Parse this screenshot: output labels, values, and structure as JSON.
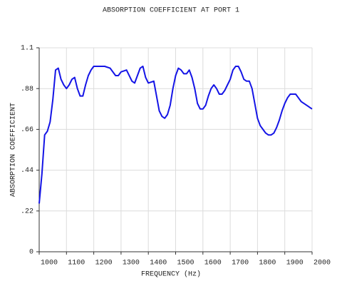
{
  "chart_data": {
    "type": "line",
    "title": "ABSORPTION COEFFICIENT AT PORT 1",
    "x_label": "FREQUENCY (Hz)",
    "y_label": "ABSORPTION COEFFICIENT",
    "grid": true,
    "xlim": [
      1000,
      2000
    ],
    "xticks": [
      1000,
      1100,
      1200,
      1300,
      1400,
      1500,
      1600,
      1700,
      1800,
      1900,
      2000
    ],
    "ylim": [
      0,
      1.1
    ],
    "yticks": [
      0,
      {
        "value": 0.22,
        "label": ".22"
      },
      {
        "value": 0.44,
        "label": ".44"
      },
      {
        "value": 0.66,
        "label": ".66"
      },
      {
        "value": 0.88,
        "label": ".88"
      },
      1.1
    ],
    "x": [
      1000,
      1010,
      1020,
      1030,
      1040,
      1050,
      1060,
      1070,
      1080,
      1090,
      1100,
      1110,
      1120,
      1130,
      1140,
      1150,
      1160,
      1170,
      1180,
      1190,
      1200,
      1220,
      1240,
      1260,
      1280,
      1290,
      1300,
      1320,
      1340,
      1350,
      1360,
      1370,
      1380,
      1390,
      1400,
      1420,
      1430,
      1440,
      1450,
      1460,
      1470,
      1480,
      1490,
      1500,
      1510,
      1520,
      1530,
      1540,
      1550,
      1560,
      1570,
      1580,
      1590,
      1600,
      1610,
      1620,
      1630,
      1640,
      1650,
      1660,
      1670,
      1680,
      1690,
      1700,
      1710,
      1720,
      1730,
      1740,
      1750,
      1760,
      1770,
      1780,
      1790,
      1800,
      1810,
      1820,
      1830,
      1840,
      1850,
      1860,
      1870,
      1880,
      1890,
      1900,
      1910,
      1920,
      1930,
      1940,
      1950,
      1960,
      1980,
      2000
    ],
    "series": [
      {
        "color": "#1414e6",
        "values": [
          0.26,
          0.42,
          0.63,
          0.65,
          0.7,
          0.82,
          0.98,
          0.99,
          0.93,
          0.9,
          0.88,
          0.9,
          0.93,
          0.94,
          0.88,
          0.84,
          0.84,
          0.9,
          0.95,
          0.98,
          1.0,
          1.0,
          1.0,
          0.99,
          0.95,
          0.95,
          0.97,
          0.98,
          0.92,
          0.91,
          0.95,
          0.99,
          1.0,
          0.94,
          0.91,
          0.92,
          0.84,
          0.76,
          0.73,
          0.72,
          0.74,
          0.79,
          0.88,
          0.95,
          0.99,
          0.98,
          0.96,
          0.96,
          0.98,
          0.94,
          0.88,
          0.8,
          0.77,
          0.77,
          0.79,
          0.84,
          0.88,
          0.9,
          0.88,
          0.85,
          0.85,
          0.87,
          0.9,
          0.93,
          0.98,
          1.0,
          1.0,
          0.97,
          0.93,
          0.92,
          0.92,
          0.88,
          0.8,
          0.72,
          0.68,
          0.66,
          0.64,
          0.63,
          0.63,
          0.64,
          0.67,
          0.71,
          0.76,
          0.8,
          0.83,
          0.85,
          0.85,
          0.85,
          0.83,
          0.81,
          0.79,
          0.77
        ]
      }
    ]
  }
}
